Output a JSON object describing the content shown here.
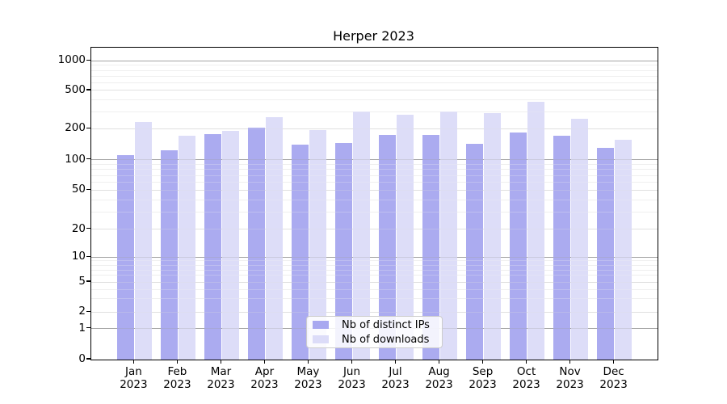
{
  "figure": {
    "title": "Herper 2023"
  },
  "chart_data": {
    "type": "bar",
    "title": "Herper 2023",
    "categories": [
      "Jan 2023",
      "Feb 2023",
      "Mar 2023",
      "Apr 2023",
      "May 2023",
      "Jun 2023",
      "Jul 2023",
      "Aug 2023",
      "Sep 2023",
      "Oct 2023",
      "Nov 2023",
      "Dec 2023"
    ],
    "series": [
      {
        "name": "Nb of distinct IPs",
        "color": "#a8a8f0",
        "values": [
          110,
          123,
          177,
          207,
          140,
          146,
          175,
          173,
          142,
          183,
          172,
          131
        ]
      },
      {
        "name": "Nb of downloads",
        "color": "#dcdcf8",
        "values": [
          237,
          172,
          190,
          262,
          194,
          305,
          278,
          303,
          293,
          382,
          252,
          156
        ]
      }
    ],
    "yscale": "symlog",
    "yticks": [
      0,
      1,
      2,
      5,
      10,
      20,
      50,
      100,
      200,
      500,
      1000
    ],
    "ylim": [
      0,
      1150
    ],
    "xlabel": "",
    "ylabel": "",
    "grid": "horizontal, log minor gridlines",
    "legend_position": "lower center"
  }
}
